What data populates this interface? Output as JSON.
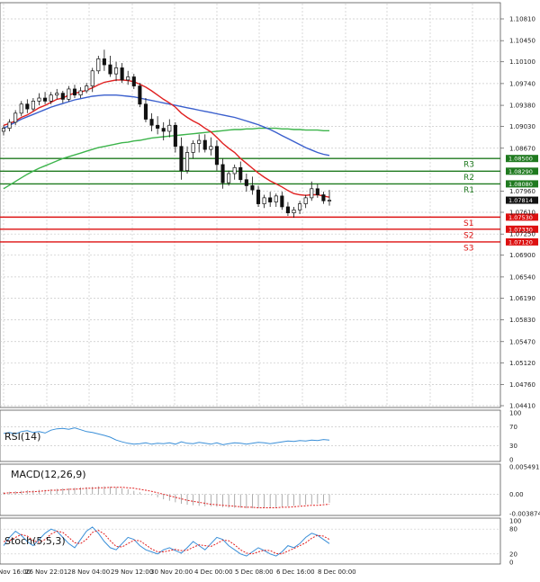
{
  "chart_data": {
    "type": "candlestick",
    "price_axis": {
      "ylim": [
        1.0441,
        1.1081
      ],
      "ticks": [
        "1.10810",
        "1.10450",
        "1.10100",
        "1.09740",
        "1.09380",
        "1.09030",
        "1.08670",
        "1.07960",
        "1.07610",
        "1.07250",
        "1.06900",
        "1.06540",
        "1.06190",
        "1.05830",
        "1.05470",
        "1.05120",
        "1.04760",
        "1.04410"
      ]
    },
    "time_labels": [
      "Nov 16:00",
      "26 Nov 22:01",
      "28 Nov 04:00",
      "29 Nov 12:00",
      "30 Nov 20:00",
      "4 Dec 00:00",
      "5 Dec 08:00",
      "6 Dec 16:00",
      "8 Dec 00:00"
    ],
    "last_price": {
      "value": 1.0781,
      "label": "1.07814"
    },
    "levels": [
      {
        "name": "R3",
        "value": 1.085,
        "label": "1.08500",
        "color": "#1f7a1f"
      },
      {
        "name": "R2",
        "value": 1.0829,
        "label": "1.08290",
        "color": "#1f7a1f"
      },
      {
        "name": "R1",
        "value": 1.0808,
        "label": "1.08080",
        "color": "#1f7a1f"
      },
      {
        "name": "S1",
        "value": 1.0753,
        "label": "1.07530",
        "color": "#dd1111"
      },
      {
        "name": "S2",
        "value": 1.0733,
        "label": "1.07330",
        "color": "#dd1111"
      },
      {
        "name": "S3",
        "value": 1.0712,
        "label": "1.07120",
        "color": "#dd1111"
      }
    ],
    "candles": [
      [
        1.0895,
        1.0905,
        1.0888,
        1.09
      ],
      [
        1.09,
        1.0915,
        1.0895,
        1.091
      ],
      [
        1.091,
        1.093,
        1.0905,
        1.0925
      ],
      [
        1.0925,
        1.0945,
        1.092,
        1.094
      ],
      [
        1.094,
        1.0948,
        1.0925,
        1.0932
      ],
      [
        1.0932,
        1.095,
        1.0928,
        1.0945
      ],
      [
        1.0945,
        1.0958,
        1.0938,
        1.095
      ],
      [
        1.095,
        1.096,
        1.094,
        1.0945
      ],
      [
        1.0945,
        1.096,
        1.094,
        1.0955
      ],
      [
        1.0955,
        1.0965,
        1.0948,
        1.0958
      ],
      [
        1.0958,
        1.0962,
        1.0942,
        1.0948
      ],
      [
        1.0948,
        1.097,
        1.0944,
        1.0965
      ],
      [
        1.0965,
        1.0972,
        1.095,
        1.0955
      ],
      [
        1.0955,
        1.0968,
        1.095,
        1.0962
      ],
      [
        1.0962,
        1.0975,
        1.0958,
        1.097
      ],
      [
        1.097,
        1.1,
        1.096,
        1.0995
      ],
      [
        1.0995,
        1.102,
        1.099,
        1.1015
      ],
      [
        1.1015,
        1.103,
        1.0995,
        1.1005
      ],
      [
        1.1005,
        1.102,
        1.0985,
        1.099
      ],
      [
        1.099,
        1.101,
        1.0978,
        1.1
      ],
      [
        1.1,
        1.1008,
        1.0975,
        1.098
      ],
      [
        1.098,
        1.0995,
        1.0972,
        1.0985
      ],
      [
        1.0985,
        1.099,
        1.0965,
        1.097
      ],
      [
        1.097,
        1.0975,
        1.0935,
        1.094
      ],
      [
        1.094,
        1.095,
        1.091,
        1.0915
      ],
      [
        1.0915,
        1.0925,
        1.0895,
        1.0905
      ],
      [
        1.0905,
        1.092,
        1.089,
        1.09
      ],
      [
        1.09,
        1.091,
        1.088,
        1.0895
      ],
      [
        1.0895,
        1.0915,
        1.0885,
        1.0905
      ],
      [
        1.0905,
        1.091,
        1.086,
        1.087
      ],
      [
        1.087,
        1.0885,
        1.0815,
        1.083
      ],
      [
        1.083,
        1.087,
        1.0825,
        1.086
      ],
      [
        1.086,
        1.088,
        1.085,
        1.0875
      ],
      [
        1.0875,
        1.089,
        1.086,
        1.088
      ],
      [
        1.088,
        1.089,
        1.086,
        1.0865
      ],
      [
        1.0865,
        1.0885,
        1.0855,
        1.087
      ],
      [
        1.087,
        1.088,
        1.083,
        1.084
      ],
      [
        1.084,
        1.085,
        1.08,
        1.081
      ],
      [
        1.081,
        1.083,
        1.0805,
        1.0825
      ],
      [
        1.0825,
        1.084,
        1.0815,
        1.0835
      ],
      [
        1.0835,
        1.0845,
        1.081,
        1.0815
      ],
      [
        1.0815,
        1.0825,
        1.0795,
        1.0805
      ],
      [
        1.0805,
        1.082,
        1.079,
        1.0798
      ],
      [
        1.0798,
        1.0805,
        1.077,
        1.0775
      ],
      [
        1.0775,
        1.079,
        1.0768,
        1.0785
      ],
      [
        1.0785,
        1.0795,
        1.077,
        1.0778
      ],
      [
        1.0778,
        1.0792,
        1.077,
        1.0788
      ],
      [
        1.0788,
        1.0795,
        1.0765,
        1.077
      ],
      [
        1.077,
        1.0778,
        1.0755,
        1.076
      ],
      [
        1.076,
        1.077,
        1.0752,
        1.0765
      ],
      [
        1.0765,
        1.078,
        1.0758,
        1.0775
      ],
      [
        1.0775,
        1.079,
        1.0768,
        1.0785
      ],
      [
        1.0785,
        1.0812,
        1.078,
        1.08
      ],
      [
        1.08,
        1.0808,
        1.0785,
        1.079
      ],
      [
        1.079,
        1.0795,
        1.0775,
        1.078
      ],
      [
        1.078,
        1.0798,
        1.0772,
        1.0781
      ]
    ],
    "ma_red": [
      1.0905,
      1.0908,
      1.0912,
      1.0918,
      1.0922,
      1.0928,
      1.0934,
      1.0938,
      1.0943,
      1.0948,
      1.095,
      1.0955,
      1.0958,
      1.096,
      1.0963,
      1.0967,
      1.0972,
      1.0976,
      1.0978,
      1.098,
      1.098,
      1.0979,
      1.0977,
      1.0973,
      1.0968,
      1.0962,
      1.0955,
      1.0948,
      1.0942,
      1.0935,
      1.0925,
      1.0918,
      1.0912,
      1.0907,
      1.09,
      1.0894,
      1.0885,
      1.0875,
      1.0867,
      1.086,
      1.085,
      1.0842,
      1.0834,
      1.0826,
      1.0819,
      1.0813,
      1.0808,
      1.0803,
      1.0797,
      1.0792,
      1.079,
      1.0789,
      1.079,
      1.079,
      1.0788,
      1.0786
    ],
    "ma_blue": [
      1.09,
      1.0905,
      1.091,
      1.0915,
      1.0919,
      1.0923,
      1.0927,
      1.0931,
      1.0935,
      1.0938,
      1.0941,
      1.0944,
      1.0947,
      1.0949,
      1.0951,
      1.0953,
      1.0954,
      1.0955,
      1.0955,
      1.0955,
      1.0954,
      1.0953,
      1.0952,
      1.095,
      1.0948,
      1.0946,
      1.0944,
      1.0942,
      1.094,
      1.0938,
      1.0936,
      1.0934,
      1.0932,
      1.093,
      1.0928,
      1.0926,
      1.0924,
      1.0922,
      1.092,
      1.0918,
      1.0915,
      1.0912,
      1.0909,
      1.0906,
      1.0902,
      1.0898,
      1.0893,
      1.0888,
      1.0883,
      1.0878,
      1.0873,
      1.0868,
      1.0864,
      1.086,
      1.0857,
      1.0855
    ],
    "ma_green": [
      1.08,
      1.0806,
      1.0812,
      1.0818,
      1.0824,
      1.0829,
      1.0834,
      1.0838,
      1.0842,
      1.0846,
      1.085,
      1.0853,
      1.0856,
      1.0859,
      1.0862,
      1.0865,
      1.0868,
      1.087,
      1.0872,
      1.0874,
      1.0876,
      1.0877,
      1.0879,
      1.088,
      1.0882,
      1.0884,
      1.0885,
      1.0886,
      1.0887,
      1.0888,
      1.0889,
      1.089,
      1.0891,
      1.0892,
      1.0893,
      1.0894,
      1.0895,
      1.0896,
      1.0897,
      1.0898,
      1.0898,
      1.0899,
      1.0899,
      1.09,
      1.09,
      1.09,
      1.09,
      1.0899,
      1.0899,
      1.0898,
      1.0898,
      1.0897,
      1.0897,
      1.0897,
      1.0896,
      1.0896
    ],
    "rsi": {
      "label": "RSI(14)",
      "ticks": [
        "100",
        "70",
        "30",
        "0"
      ],
      "values": [
        56,
        58,
        55,
        60,
        62,
        58,
        60,
        57,
        63,
        66,
        67,
        65,
        68,
        64,
        60,
        58,
        55,
        52,
        48,
        42,
        38,
        35,
        33,
        34,
        36,
        33,
        35,
        34,
        36,
        33,
        38,
        35,
        34,
        37,
        35,
        33,
        36,
        32,
        34,
        36,
        35,
        33,
        35,
        37,
        36,
        34,
        36,
        38,
        40,
        39,
        41,
        40,
        42,
        41,
        43,
        42
      ]
    },
    "macd": {
      "label": "MACD(12,26,9)",
      "ticks": [
        "0.005491",
        "0.00",
        "-0.003874"
      ],
      "hist": [
        0.0004,
        0.0005,
        0.0006,
        0.0007,
        0.0008,
        0.0008,
        0.0009,
        0.0009,
        0.001,
        0.0011,
        0.0012,
        0.0012,
        0.0013,
        0.0014,
        0.0014,
        0.0015,
        0.0016,
        0.0016,
        0.0015,
        0.0014,
        0.0012,
        0.001,
        0.0007,
        0.0004,
        0.0001,
        -0.0002,
        -0.0006,
        -0.001,
        -0.0013,
        -0.0016,
        -0.0019,
        -0.0021,
        -0.0022,
        -0.0023,
        -0.0024,
        -0.0024,
        -0.0025,
        -0.0026,
        -0.0027,
        -0.0027,
        -0.0027,
        -0.0028,
        -0.0028,
        -0.0028,
        -0.0027,
        -0.0027,
        -0.0026,
        -0.0025,
        -0.0024,
        -0.0023,
        -0.0022,
        -0.0021,
        -0.002,
        -0.0019,
        -0.0018,
        -0.0017
      ],
      "signal": [
        0.0002,
        0.0003,
        0.0003,
        0.0004,
        0.0005,
        0.0005,
        0.0006,
        0.0007,
        0.0008,
        0.0008,
        0.0009,
        0.001,
        0.001,
        0.0011,
        0.0012,
        0.0012,
        0.0013,
        0.0013,
        0.0014,
        0.0014,
        0.0014,
        0.0013,
        0.0012,
        0.001,
        0.0008,
        0.0006,
        0.0003,
        0,
        -0.0003,
        -0.0006,
        -0.0009,
        -0.0012,
        -0.0014,
        -0.0016,
        -0.0018,
        -0.002,
        -0.0021,
        -0.0022,
        -0.0023,
        -0.0024,
        -0.0025,
        -0.0026,
        -0.0026,
        -0.0027,
        -0.0027,
        -0.0027,
        -0.0027,
        -0.0026,
        -0.0026,
        -0.0025,
        -0.0024,
        -0.0023,
        -0.0022,
        -0.0022,
        -0.0021,
        -0.002
      ]
    },
    "stoch": {
      "label": "Stoch(5,5,3)",
      "ticks": [
        "100",
        "80",
        "20",
        "0"
      ],
      "k": [
        40,
        60,
        75,
        65,
        50,
        40,
        55,
        70,
        80,
        75,
        60,
        45,
        35,
        55,
        75,
        85,
        70,
        50,
        35,
        30,
        45,
        60,
        55,
        40,
        30,
        25,
        20,
        30,
        35,
        28,
        22,
        35,
        50,
        40,
        30,
        45,
        60,
        55,
        40,
        30,
        20,
        15,
        25,
        35,
        28,
        20,
        15,
        25,
        40,
        35,
        45,
        60,
        70,
        65,
        55,
        45
      ],
      "d": [
        50,
        52,
        60,
        67,
        63,
        52,
        48,
        55,
        68,
        75,
        72,
        60,
        47,
        45,
        55,
        72,
        77,
        68,
        52,
        38,
        37,
        45,
        53,
        52,
        42,
        32,
        25,
        25,
        28,
        31,
        28,
        29,
        36,
        42,
        40,
        38,
        45,
        53,
        52,
        42,
        30,
        22,
        20,
        25,
        29,
        28,
        21,
        20,
        27,
        33,
        40,
        47,
        58,
        65,
        63,
        55
      ]
    }
  }
}
